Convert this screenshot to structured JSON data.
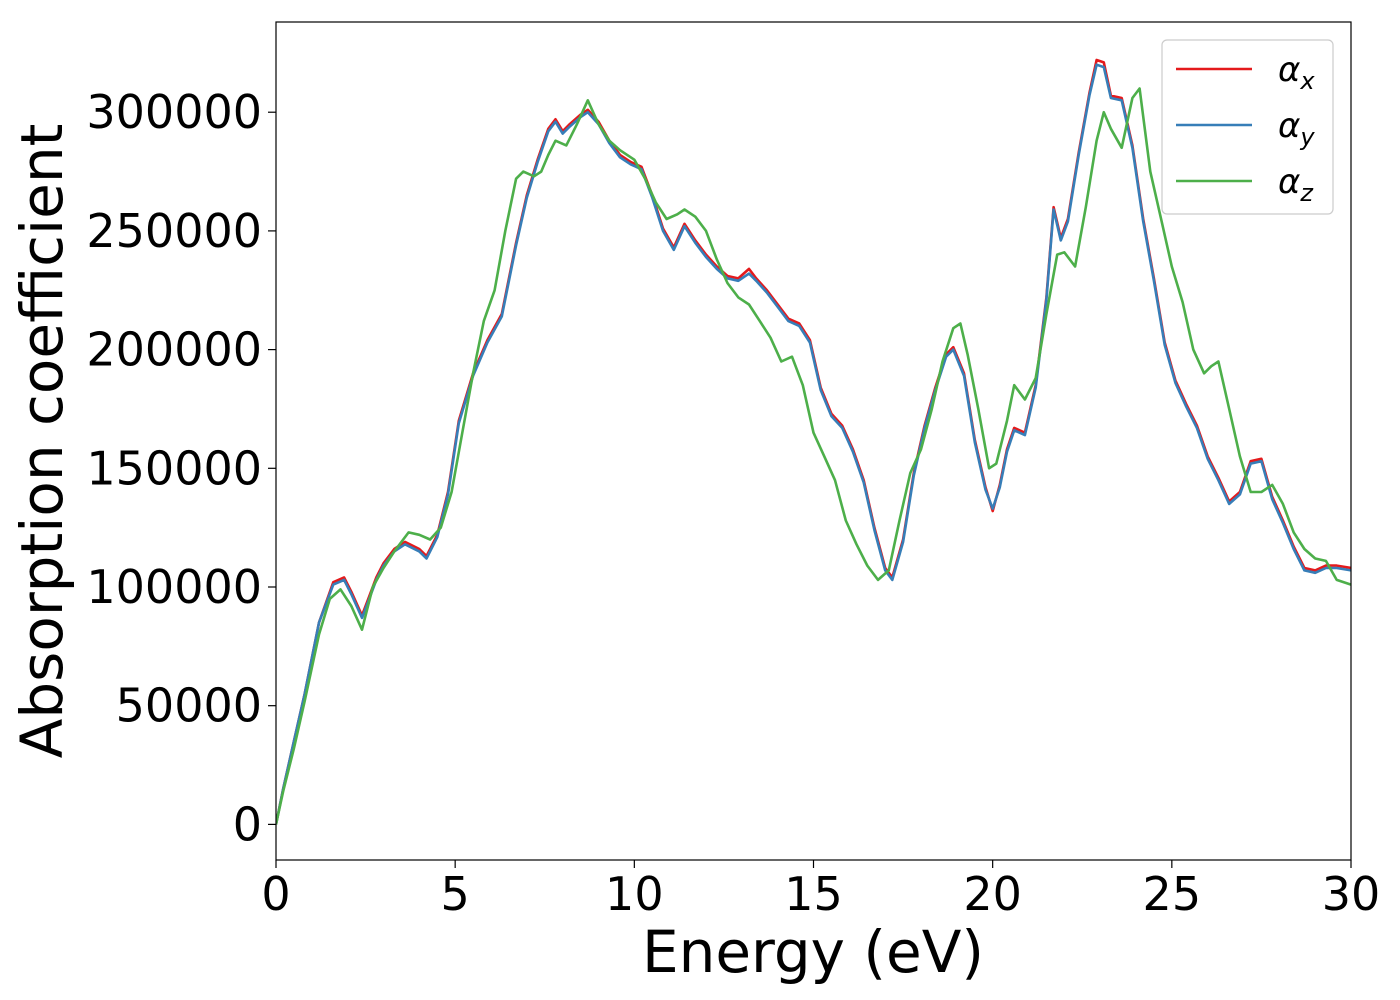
{
  "chart_data": {
    "type": "line",
    "xlabel": "Energy (eV)",
    "ylabel": "Absorption coefficient",
    "xlim": [
      0,
      30
    ],
    "ylim": [
      -15000,
      338000
    ],
    "xticks": [
      "0",
      "5",
      "10",
      "15",
      "20",
      "25",
      "30"
    ],
    "yticks": [
      "0",
      "50000",
      "100000",
      "150000",
      "200000",
      "250000",
      "300000"
    ],
    "grid": false,
    "legend_position": "top-right",
    "series": [
      {
        "name": "αx",
        "legend_base": "α",
        "legend_sub": "x",
        "color": "#e41a1c",
        "x": [
          0,
          0.2,
          0.5,
          0.8,
          1.2,
          1.6,
          1.9,
          2.1,
          2.4,
          2.6,
          2.8,
          3.0,
          3.3,
          3.6,
          4.0,
          4.2,
          4.5,
          4.8,
          5.1,
          5.5,
          5.9,
          6.3,
          6.7,
          7.0,
          7.3,
          7.6,
          7.8,
          8.0,
          8.2,
          8.5,
          8.7,
          9.0,
          9.3,
          9.6,
          9.9,
          10.2,
          10.5,
          10.8,
          11.1,
          11.4,
          11.7,
          12.0,
          12.3,
          12.6,
          12.9,
          13.2,
          13.4,
          13.7,
          14.0,
          14.3,
          14.6,
          14.9,
          15.2,
          15.5,
          15.8,
          16.1,
          16.4,
          16.7,
          17.0,
          17.2,
          17.5,
          17.8,
          18.1,
          18.4,
          18.7,
          18.9,
          19.2,
          19.5,
          19.8,
          20.0,
          20.2,
          20.4,
          20.6,
          20.9,
          21.2,
          21.5,
          21.7,
          21.9,
          22.1,
          22.4,
          22.7,
          22.9,
          23.1,
          23.3,
          23.6,
          23.9,
          24.2,
          24.5,
          24.8,
          25.1,
          25.4,
          25.7,
          26.0,
          26.3,
          26.6,
          26.9,
          27.2,
          27.5,
          27.8,
          28.1,
          28.4,
          28.7,
          29.0,
          29.3,
          29.6,
          30.0
        ],
        "y": [
          0,
          15000,
          35000,
          55000,
          85000,
          102000,
          104000,
          98000,
          88000,
          96000,
          104000,
          110000,
          116000,
          119000,
          116000,
          113000,
          122000,
          140000,
          170000,
          190000,
          204000,
          215000,
          245000,
          265000,
          280000,
          293000,
          297000,
          292000,
          295000,
          299000,
          301000,
          296000,
          288000,
          282000,
          279000,
          277000,
          265000,
          251000,
          243000,
          253000,
          246000,
          240000,
          235000,
          231000,
          230000,
          234000,
          230000,
          225000,
          219000,
          213000,
          211000,
          204000,
          184000,
          173000,
          168000,
          158000,
          145000,
          125000,
          108000,
          104000,
          120000,
          148000,
          168000,
          184000,
          198000,
          201000,
          190000,
          162000,
          142000,
          132000,
          143000,
          158000,
          167000,
          165000,
          185000,
          222000,
          260000,
          247000,
          255000,
          283000,
          308000,
          322000,
          321000,
          307000,
          306000,
          286000,
          255000,
          230000,
          203000,
          187000,
          177000,
          168000,
          155000,
          146000,
          136000,
          140000,
          153000,
          154000,
          138000,
          128000,
          117000,
          108000,
          107000,
          109000,
          109000,
          108000
        ]
      },
      {
        "name": "αy",
        "legend_base": "α",
        "legend_sub": "y",
        "color": "#377eb8",
        "x": [
          0,
          0.2,
          0.5,
          0.8,
          1.2,
          1.6,
          1.9,
          2.1,
          2.4,
          2.6,
          2.8,
          3.0,
          3.3,
          3.6,
          4.0,
          4.2,
          4.5,
          4.8,
          5.1,
          5.5,
          5.9,
          6.3,
          6.7,
          7.0,
          7.3,
          7.6,
          7.8,
          8.0,
          8.2,
          8.5,
          8.7,
          9.0,
          9.3,
          9.6,
          9.9,
          10.2,
          10.5,
          10.8,
          11.1,
          11.4,
          11.7,
          12.0,
          12.3,
          12.6,
          12.9,
          13.2,
          13.4,
          13.7,
          14.0,
          14.3,
          14.6,
          14.9,
          15.2,
          15.5,
          15.8,
          16.1,
          16.4,
          16.7,
          17.0,
          17.2,
          17.5,
          17.8,
          18.1,
          18.4,
          18.7,
          18.9,
          19.2,
          19.5,
          19.8,
          20.0,
          20.2,
          20.4,
          20.6,
          20.9,
          21.2,
          21.5,
          21.7,
          21.9,
          22.1,
          22.4,
          22.7,
          22.9,
          23.1,
          23.3,
          23.6,
          23.9,
          24.2,
          24.5,
          24.8,
          25.1,
          25.4,
          25.7,
          26.0,
          26.3,
          26.6,
          26.9,
          27.2,
          27.5,
          27.8,
          28.1,
          28.4,
          28.7,
          29.0,
          29.3,
          29.6,
          30.0
        ],
        "y": [
          0,
          15000,
          35000,
          55000,
          85000,
          101000,
          103000,
          97000,
          87000,
          95000,
          103000,
          109000,
          115000,
          118000,
          115000,
          112000,
          121000,
          139000,
          169000,
          189000,
          203000,
          214000,
          244000,
          264000,
          279000,
          292000,
          296000,
          291000,
          294000,
          298000,
          300000,
          295000,
          287000,
          281000,
          278000,
          276000,
          264000,
          250000,
          242000,
          252000,
          245000,
          239000,
          234000,
          230000,
          229000,
          232000,
          229000,
          224000,
          218000,
          212000,
          210000,
          203000,
          183000,
          172000,
          167000,
          157000,
          144000,
          124000,
          107000,
          103000,
          119000,
          147000,
          167000,
          183000,
          197000,
          200000,
          189000,
          161000,
          141000,
          133000,
          142000,
          157000,
          166000,
          164000,
          184000,
          221000,
          259000,
          246000,
          254000,
          282000,
          307000,
          320000,
          319000,
          306000,
          305000,
          285000,
          254000,
          229000,
          202000,
          186000,
          176000,
          167000,
          154000,
          145000,
          135000,
          139000,
          152000,
          153000,
          137000,
          127000,
          116000,
          107000,
          106000,
          108000,
          108000,
          107000
        ]
      },
      {
        "name": "αz",
        "legend_base": "α",
        "legend_sub": "z",
        "color": "#4daf4a",
        "x": [
          0,
          0.2,
          0.5,
          0.8,
          1.2,
          1.5,
          1.8,
          2.1,
          2.4,
          2.7,
          3.0,
          3.3,
          3.7,
          4.0,
          4.3,
          4.6,
          4.9,
          5.2,
          5.5,
          5.8,
          6.1,
          6.4,
          6.7,
          6.9,
          7.2,
          7.4,
          7.6,
          7.8,
          8.1,
          8.4,
          8.7,
          9.0,
          9.3,
          9.6,
          10.0,
          10.3,
          10.6,
          10.9,
          11.2,
          11.4,
          11.7,
          12.0,
          12.3,
          12.6,
          12.9,
          13.2,
          13.5,
          13.8,
          14.1,
          14.4,
          14.7,
          15.0,
          15.3,
          15.6,
          15.9,
          16.2,
          16.5,
          16.8,
          17.1,
          17.4,
          17.7,
          18.0,
          18.3,
          18.6,
          18.9,
          19.1,
          19.3,
          19.6,
          19.9,
          20.1,
          20.4,
          20.6,
          20.9,
          21.2,
          21.5,
          21.8,
          22.0,
          22.3,
          22.6,
          22.9,
          23.1,
          23.3,
          23.6,
          23.9,
          24.1,
          24.4,
          24.7,
          25.0,
          25.3,
          25.6,
          25.9,
          26.1,
          26.3,
          26.6,
          26.9,
          27.2,
          27.5,
          27.8,
          28.1,
          28.4,
          28.7,
          29.0,
          29.3,
          29.6,
          30.0
        ],
        "y": [
          0,
          14000,
          32000,
          52000,
          80000,
          95000,
          99000,
          92000,
          82000,
          100000,
          108000,
          115000,
          123000,
          122000,
          120000,
          125000,
          140000,
          165000,
          190000,
          212000,
          225000,
          250000,
          272000,
          275000,
          273000,
          275000,
          282000,
          288000,
          286000,
          295000,
          305000,
          295000,
          288000,
          284000,
          280000,
          272000,
          262000,
          255000,
          257000,
          259000,
          256000,
          250000,
          238000,
          228000,
          222000,
          219000,
          212000,
          205000,
          195000,
          197000,
          185000,
          165000,
          155000,
          145000,
          128000,
          118000,
          109000,
          103000,
          107000,
          128000,
          148000,
          158000,
          175000,
          195000,
          209000,
          211000,
          198000,
          175000,
          150000,
          152000,
          170000,
          185000,
          179000,
          188000,
          215000,
          240000,
          241000,
          235000,
          260000,
          288000,
          300000,
          293000,
          285000,
          306000,
          310000,
          275000,
          255000,
          235000,
          220000,
          200000,
          190000,
          193000,
          195000,
          175000,
          155000,
          140000,
          140000,
          143000,
          135000,
          123000,
          116000,
          112000,
          111000,
          103000,
          101000
        ]
      }
    ]
  }
}
